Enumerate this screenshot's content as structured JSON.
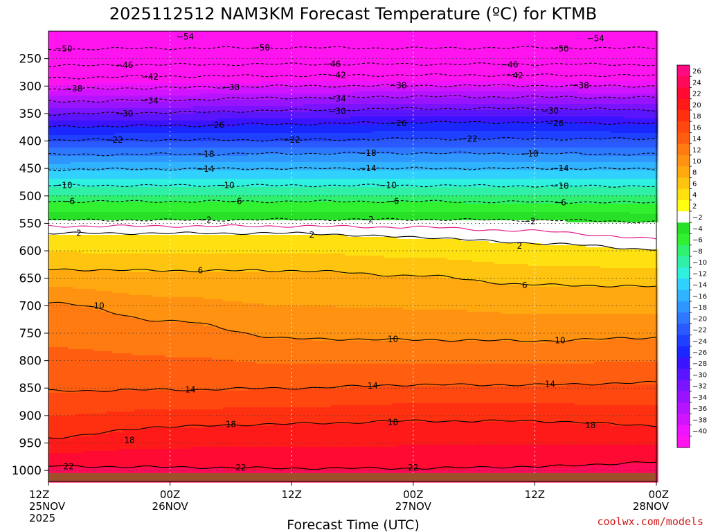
{
  "chart_data": {
    "type": "heatmap",
    "title": "2025112512 NAM3KM Forecast Temperature (ºC) for KTMB",
    "xlabel": "Forecast Time (UTC)",
    "ylabel": "",
    "credit": "coolwx.com/models",
    "y_ticks": [
      250,
      300,
      350,
      400,
      450,
      500,
      550,
      600,
      650,
      700,
      750,
      800,
      850,
      900,
      950,
      1000
    ],
    "y_range_hpa": [
      200,
      1020
    ],
    "x_range_hours": [
      0,
      60
    ],
    "x_ticks": [
      {
        "hour": 0,
        "line1": "12Z",
        "line2": "25NOV",
        "line3": "2025"
      },
      {
        "hour": 12,
        "line1": "00Z",
        "line2": "26NOV",
        "line3": ""
      },
      {
        "hour": 24,
        "line1": "12Z",
        "line2": "",
        "line3": ""
      },
      {
        "hour": 36,
        "line1": "00Z",
        "line2": "27NOV",
        "line3": ""
      },
      {
        "hour": 48,
        "line1": "12Z",
        "line2": "",
        "line3": ""
      },
      {
        "hour": 60,
        "line1": "00Z",
        "line2": "28NOV",
        "line3": ""
      }
    ],
    "colorbar": {
      "levels": [
        26,
        24,
        22,
        20,
        18,
        16,
        14,
        12,
        10,
        8,
        6,
        4,
        2,
        -2,
        -4,
        -6,
        -8,
        -10,
        -12,
        -14,
        -16,
        -18,
        -20,
        -22,
        -24,
        -26,
        -28,
        -30,
        -32,
        -34,
        -36,
        -38,
        -40
      ],
      "label_values": [
        26,
        24,
        22,
        20,
        18,
        16,
        14,
        12,
        10,
        8,
        6,
        4,
        2,
        -2,
        -4,
        -6,
        -8,
        -10,
        -12,
        -14,
        -16,
        -18,
        -20,
        -22,
        -24,
        -26,
        -28,
        -30,
        -32,
        -34,
        -36,
        -38,
        -40
      ],
      "labels": [
        "26",
        "24",
        "22",
        "20",
        "18",
        "16",
        "14",
        "12",
        "10",
        "8",
        "6",
        "4",
        "2",
        "−2",
        "−4",
        "−6",
        "−8",
        "−10",
        "−12",
        "−14",
        "−16",
        "−18",
        "−20",
        "−22",
        "−24",
        "−26",
        "−28",
        "−30",
        "−32",
        "−34",
        "−36",
        "−38",
        "−40"
      ],
      "colors": [
        "#ff0a82",
        "#ff0a5a",
        "#ff0a32",
        "#ff1a1a",
        "#ff3010",
        "#ff4810",
        "#ff5e10",
        "#ff7a10",
        "#ff9210",
        "#ffa810",
        "#ffc410",
        "#ffe010",
        "#ffff10",
        "#ffffff",
        "#28e028",
        "#30f030",
        "#30f070",
        "#30f0a8",
        "#30f0e0",
        "#30d0ff",
        "#30b4ff",
        "#3096ff",
        "#2e78ff",
        "#2a5aff",
        "#2040ff",
        "#1a28ff",
        "#3a14ff",
        "#5a14ff",
        "#7a14ff",
        "#9814ff",
        "#b414ff",
        "#d014ff",
        "#ee14ff",
        "#ff14f0"
      ]
    },
    "series": [
      {
        "name": "-50",
        "value": -50,
        "style": "dashed",
        "p": [
          233,
          231,
          230,
          231,
          230,
          231
        ]
      },
      {
        "name": "-46",
        "value": -46,
        "style": "dashed",
        "p": [
          263,
          261,
          260,
          260,
          260,
          261
        ]
      },
      {
        "name": "-42",
        "value": -42,
        "style": "dashed",
        "p": [
          285,
          282,
          281,
          280,
          280,
          281
        ]
      },
      {
        "name": "-38",
        "value": -38,
        "style": "dashed",
        "p": [
          306,
          303,
          300,
          299,
          299,
          300
        ]
      },
      {
        "name": "-34",
        "value": -34,
        "style": "dashed",
        "p": [
          328,
          325,
          321,
          319,
          320,
          321
        ]
      },
      {
        "name": "-30",
        "value": -30,
        "style": "dashed",
        "p": [
          351,
          348,
          344,
          341,
          341,
          343
        ]
      },
      {
        "name": "-26",
        "value": -26,
        "style": "dashed",
        "p": [
          374,
          372,
          369,
          366,
          366,
          368
        ]
      },
      {
        "name": "-22",
        "value": -22,
        "style": "dashed",
        "p": [
          398,
          398,
          398,
          396,
          396,
          396
        ]
      },
      {
        "name": "-18",
        "value": -18,
        "style": "dashed",
        "p": [
          425,
          424,
          423,
          422,
          423,
          424
        ]
      },
      {
        "name": "-14",
        "value": -14,
        "style": "dashed",
        "p": [
          452,
          451,
          450,
          450,
          450,
          451
        ]
      },
      {
        "name": "-10",
        "value": -10,
        "style": "dashed",
        "p": [
          481,
          481,
          481,
          481,
          482,
          482
        ]
      },
      {
        "name": "-6",
        "value": -6,
        "style": "dashed",
        "p": [
          510,
          510,
          510,
          510,
          511,
          512
        ]
      },
      {
        "name": "-2",
        "value": -2,
        "style": "dashed",
        "p": [
          544,
          544,
          543,
          543,
          544,
          547
        ]
      },
      {
        "name": "0",
        "value": 0,
        "style": "pink",
        "p": [
          555,
          555,
          555,
          557,
          564,
          578
        ]
      },
      {
        "name": "2",
        "value": 2,
        "style": "solid",
        "p": [
          568,
          568,
          568,
          575,
          586,
          597
        ]
      },
      {
        "name": "6",
        "value": 6,
        "style": "solid",
        "p": [
          634,
          636,
          636,
          645,
          662,
          665
        ]
      },
      {
        "name": "10",
        "value": 10,
        "style": "solid",
        "p": [
          694,
          728,
          760,
          762,
          764,
          758
        ]
      },
      {
        "name": "14",
        "value": 14,
        "style": "solid",
        "p": [
          855,
          853,
          850,
          844,
          844,
          840
        ]
      },
      {
        "name": "18",
        "value": 18,
        "style": "solid",
        "p": [
          940,
          920,
          915,
          910,
          910,
          918
        ]
      },
      {
        "name": "22",
        "value": 22,
        "style": "solid",
        "p": [
          992,
          994,
          996,
          996,
          993,
          985
        ]
      }
    ],
    "contour_labels": [
      {
        "text": "−54",
        "hour": 13.5,
        "hpa": 210
      },
      {
        "text": "−54",
        "hour": 54,
        "hpa": 213
      },
      {
        "text": "−50",
        "hour": 1.5,
        "hpa": 232
      },
      {
        "text": "−50",
        "hour": 21,
        "hpa": 230
      },
      {
        "text": "−50",
        "hour": 50.5,
        "hpa": 232
      },
      {
        "text": "−46",
        "hour": 7.5,
        "hpa": 262
      },
      {
        "text": "−46",
        "hour": 28,
        "hpa": 260
      },
      {
        "text": "−46",
        "hour": 45.5,
        "hpa": 261
      },
      {
        "text": "−42",
        "hour": 10,
        "hpa": 283
      },
      {
        "text": "−42",
        "hour": 28.5,
        "hpa": 280
      },
      {
        "text": "−42",
        "hour": 46,
        "hpa": 281
      },
      {
        "text": "−38",
        "hour": 2.5,
        "hpa": 305
      },
      {
        "text": "−38",
        "hour": 18,
        "hpa": 302
      },
      {
        "text": "−38",
        "hour": 34.5,
        "hpa": 299
      },
      {
        "text": "−38",
        "hour": 52.5,
        "hpa": 299
      },
      {
        "text": "−34",
        "hour": 10,
        "hpa": 327
      },
      {
        "text": "−34",
        "hour": 28.5,
        "hpa": 323
      },
      {
        "text": "−30",
        "hour": 7.5,
        "hpa": 350
      },
      {
        "text": "−30",
        "hour": 28.5,
        "hpa": 346
      },
      {
        "text": "−30",
        "hour": 49.5,
        "hpa": 345
      },
      {
        "text": "−26",
        "hour": 16.5,
        "hpa": 371
      },
      {
        "text": "−26",
        "hour": 34.5,
        "hpa": 368
      },
      {
        "text": "−26",
        "hour": 50,
        "hpa": 368
      },
      {
        "text": "−22",
        "hour": 6.5,
        "hpa": 398
      },
      {
        "text": "−22",
        "hour": 24,
        "hpa": 398
      },
      {
        "text": "−22",
        "hour": 41.5,
        "hpa": 396
      },
      {
        "text": "−18",
        "hour": 15.5,
        "hpa": 424
      },
      {
        "text": "−18",
        "hour": 31.5,
        "hpa": 422
      },
      {
        "text": "−18",
        "hour": 47.5,
        "hpa": 423
      },
      {
        "text": "−14",
        "hour": 15.5,
        "hpa": 451
      },
      {
        "text": "−14",
        "hour": 31.5,
        "hpa": 450
      },
      {
        "text": "−14",
        "hour": 50.5,
        "hpa": 450
      },
      {
        "text": "−10",
        "hour": 1.5,
        "hpa": 481
      },
      {
        "text": "−10",
        "hour": 17.5,
        "hpa": 481
      },
      {
        "text": "−10",
        "hour": 33.5,
        "hpa": 481
      },
      {
        "text": "−10",
        "hour": 50.5,
        "hpa": 482
      },
      {
        "text": "−6",
        "hour": 2,
        "hpa": 510
      },
      {
        "text": "−6",
        "hour": 18.5,
        "hpa": 510
      },
      {
        "text": "−6",
        "hour": 34,
        "hpa": 510
      },
      {
        "text": "−6",
        "hour": 50.5,
        "hpa": 512
      },
      {
        "text": "−2",
        "hour": 15.5,
        "hpa": 544
      },
      {
        "text": "−2",
        "hour": 31.5,
        "hpa": 543
      },
      {
        "text": "−2",
        "hour": 47.5,
        "hpa": 546
      },
      {
        "text": "2",
        "hour": 3,
        "hpa": 568
      },
      {
        "text": "2",
        "hour": 26,
        "hpa": 571
      },
      {
        "text": "2",
        "hour": 46.5,
        "hpa": 591
      },
      {
        "text": "6",
        "hour": 15,
        "hpa": 636
      },
      {
        "text": "6",
        "hour": 47,
        "hpa": 663
      },
      {
        "text": "10",
        "hour": 5,
        "hpa": 700
      },
      {
        "text": "10",
        "hour": 34,
        "hpa": 761
      },
      {
        "text": "10",
        "hour": 50.5,
        "hpa": 763
      },
      {
        "text": "14",
        "hour": 14,
        "hpa": 853
      },
      {
        "text": "14",
        "hour": 32,
        "hpa": 846
      },
      {
        "text": "14",
        "hour": 49.5,
        "hpa": 843
      },
      {
        "text": "18",
        "hour": 18,
        "hpa": 916
      },
      {
        "text": "18",
        "hour": 34,
        "hpa": 912
      },
      {
        "text": "18",
        "hour": 53.5,
        "hpa": 918
      },
      {
        "text": "18",
        "hour": 8,
        "hpa": 945
      },
      {
        "text": "22",
        "hour": 2,
        "hpa": 993
      },
      {
        "text": "22",
        "hour": 19,
        "hpa": 995
      },
      {
        "text": "22",
        "hour": 36,
        "hpa": 995
      }
    ]
  }
}
